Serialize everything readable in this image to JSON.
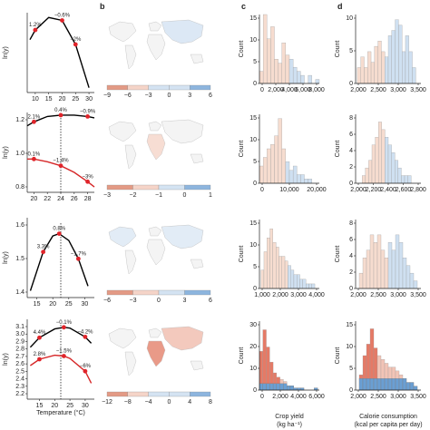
{
  "panel_labels": [
    "b",
    "c",
    "d"
  ],
  "col_a": {
    "xlabel": "Temperature (°C)",
    "rows": [
      {
        "ylabel": "ln(y)",
        "xticks": [
          10,
          15,
          20,
          25,
          30
        ],
        "yticks": [],
        "annotations": [
          "1.2%",
          "−0.6%",
          "−2%"
        ]
      },
      {
        "ylabel": "ln(y)",
        "xticks": [
          20,
          22,
          24,
          26,
          28
        ],
        "yticks": [
          "1.2",
          "1.0",
          "0.8"
        ],
        "annotations": [
          "2.1%",
          "0.4%",
          "−0.9%",
          "0.1%",
          "−1.4%",
          "−3%"
        ]
      },
      {
        "ylabel": "ln(y)",
        "xticks": [
          15,
          20,
          25,
          30
        ],
        "yticks": [
          "1.6",
          "1.5",
          "1.4"
        ],
        "annotations": [
          "3.3%",
          "0.8%",
          "−1.7%"
        ]
      },
      {
        "ylabel": "ln(y)",
        "xticks": [
          15,
          20,
          25,
          30
        ],
        "yticks": [
          "3.1",
          "3.0",
          "2.9",
          "2.8",
          "2.7",
          "2.6",
          "2.5",
          "2.4",
          "2.3",
          "2.2"
        ],
        "annotations": [
          "4.4%",
          "−0.1%",
          "−4.2%",
          "2.8%",
          "−1.5%",
          "−6%"
        ]
      }
    ]
  },
  "col_b": {
    "colorbars": [
      [
        "−9",
        "−6",
        "−3",
        "0",
        "3",
        "6"
      ],
      [
        "−3",
        "−2",
        "−1",
        "0",
        "1"
      ],
      [
        "−6",
        "−3",
        "0",
        "3",
        "6"
      ],
      [
        "−12",
        "−8",
        "−4",
        "0",
        "4",
        "8"
      ]
    ]
  },
  "col_c": {
    "ylabel": "Count",
    "xlabel_line1": "Crop yield",
    "xlabel_line2": "(kg ha⁻¹)",
    "rows": [
      {
        "xticks": [
          "0",
          "2,000",
          "4,000",
          "6,000",
          "8,000"
        ],
        "yticks": [
          "15",
          "10",
          "5",
          "0"
        ]
      },
      {
        "xticks": [
          "0",
          "10,000",
          "20,000"
        ],
        "yticks": [
          "15",
          "10",
          "5",
          "0"
        ]
      },
      {
        "xticks": [
          "1,000",
          "2,000",
          "3,000",
          "4,000"
        ],
        "yticks": [
          "15",
          "10",
          "5",
          "0"
        ]
      },
      {
        "xticks": [
          "0",
          "2,000",
          "4,000",
          "6,000"
        ],
        "yticks": [
          "30",
          "20",
          "10",
          "0"
        ]
      }
    ]
  },
  "col_d": {
    "ylabel": "Count",
    "xlabel_line1": "Calorie consumption",
    "xlabel_line2": "(kcal per capita per day)",
    "rows": [
      {
        "xticks": [
          "2,000",
          "2,500",
          "3,000",
          "3,500"
        ],
        "yticks": [
          "10",
          "5",
          "0"
        ]
      },
      {
        "xticks": [
          "2,000",
          "2,200",
          "2,400",
          "2,600",
          "2,800"
        ],
        "yticks": [
          "8",
          "6",
          "4",
          "2",
          "0"
        ]
      },
      {
        "xticks": [
          "2,000",
          "2,500",
          "3,000",
          "3,500"
        ],
        "yticks": [
          "8",
          "6",
          "4",
          "2",
          "0"
        ]
      },
      {
        "xticks": [
          "2,000",
          "2,500",
          "3,000",
          "3,500"
        ],
        "yticks": [
          "15",
          "10",
          "5",
          "0"
        ]
      }
    ]
  },
  "colors": {
    "curve": "#000000",
    "curve_red": "#d62728",
    "point": "#e0242a",
    "neg": "#d6604d",
    "pos": "#6a9fd3",
    "neutral": "#f7f7f7"
  },
  "chart_data": [
    {
      "type": "line",
      "panel": "a1",
      "x": [
        8,
        10,
        15,
        20,
        25,
        30
      ],
      "series": [
        {
          "values": [
            0.35,
            0.45,
            0.58,
            0.55,
            0.3,
            -0.15
          ]
        }
      ],
      "points": [
        [
          15,
          0.56
        ],
        [
          18,
          0.58
        ],
        [
          21,
          0.53
        ]
      ],
      "xlim": [
        7,
        32
      ]
    },
    {
      "type": "line",
      "panel": "a2",
      "x": [
        19,
        20,
        22,
        24,
        26,
        28,
        29
      ],
      "series": [
        {
          "values": [
            1.2,
            1.23,
            1.27,
            1.28,
            1.28,
            1.27,
            1.26
          ]
        },
        {
          "values": [
            0.95,
            0.95,
            0.93,
            0.9,
            0.85,
            0.78,
            0.74
          ]
        }
      ],
      "xlim": [
        19,
        29
      ],
      "ylim": [
        0.7,
        1.3
      ]
    },
    {
      "type": "line",
      "panel": "a3",
      "x": [
        13,
        17,
        20,
        22,
        25,
        28,
        31
      ],
      "series": [
        {
          "values": [
            1.38,
            1.55,
            1.62,
            1.63,
            1.6,
            1.52,
            1.4
          ]
        }
      ],
      "xlim": [
        12,
        33
      ],
      "ylim": [
        1.35,
        1.7
      ]
    },
    {
      "type": "line",
      "panel": "a4",
      "x": [
        12,
        15,
        20,
        23,
        25,
        30,
        32
      ],
      "series": [
        {
          "values": [
            2.85,
            2.97,
            3.08,
            3.1,
            3.09,
            2.98,
            2.9
          ]
        },
        {
          "values": [
            2.62,
            2.7,
            2.75,
            2.74,
            2.71,
            2.55,
            2.4
          ]
        }
      ],
      "xlim": [
        11,
        33
      ],
      "ylim": [
        2.2,
        3.2
      ]
    },
    {
      "type": "histogram",
      "panel": "c1",
      "xlim": [
        0,
        8000
      ],
      "ylim": [
        0,
        17
      ],
      "bins": [
        0,
        500,
        1000,
        1500,
        2000,
        2500,
        3000,
        3500,
        4000,
        4500,
        5000,
        5500,
        6000,
        6500,
        7000,
        7500
      ],
      "counts": [
        3,
        17,
        11,
        14,
        6,
        5,
        10,
        7,
        6,
        4,
        3,
        2,
        0,
        2,
        0,
        1
      ]
    },
    {
      "type": "histogram",
      "panel": "c2",
      "xlim": [
        0,
        24000
      ],
      "ylim": [
        0,
        16
      ],
      "bins": [
        0,
        1500,
        3000,
        4500,
        6000,
        7500,
        9000,
        10500,
        12000,
        13500,
        15000,
        16500,
        18000,
        19500
      ],
      "counts": [
        4,
        6,
        8,
        9,
        11,
        15,
        8,
        5,
        3,
        4,
        2,
        2,
        1,
        1
      ]
    },
    {
      "type": "histogram",
      "panel": "c3",
      "xlim": [
        500,
        4500
      ],
      "ylim": [
        0,
        15
      ],
      "bins": [
        600,
        800,
        1000,
        1200,
        1400,
        1600,
        1800,
        2000,
        2200,
        2400,
        2600,
        2800,
        3000,
        3200,
        3400,
        3600,
        3800,
        4000
      ],
      "counts": [
        4,
        8,
        11,
        13,
        10,
        9,
        7,
        7,
        6,
        5,
        4,
        3,
        3,
        2,
        2,
        1,
        1,
        1
      ]
    },
    {
      "type": "histogram",
      "panel": "c4",
      "xlim": [
        0,
        7000
      ],
      "ylim": [
        0,
        32
      ],
      "bins": [
        0,
        400,
        800,
        1200,
        1600,
        2000,
        2400,
        2800,
        3200,
        3600,
        4000,
        4400,
        4800,
        5200,
        5600,
        6000,
        6400
      ],
      "counts": [
        18,
        28,
        20,
        13,
        8,
        6,
        5,
        4,
        2,
        2,
        1,
        1,
        1,
        0,
        0,
        0,
        1
      ]
    },
    {
      "type": "histogram",
      "panel": "d1",
      "xlim": [
        1800,
        3700
      ],
      "ylim": [
        0,
        13
      ],
      "bins": [
        1850,
        1950,
        2050,
        2150,
        2250,
        2350,
        2450,
        2550,
        2650,
        2750,
        2850,
        2950,
        3050,
        3150,
        3250,
        3350,
        3450
      ],
      "counts": [
        3,
        5,
        3,
        6,
        4,
        7,
        8,
        6,
        5,
        9,
        10,
        12,
        11,
        6,
        9,
        6,
        3
      ]
    },
    {
      "type": "histogram",
      "panel": "d2",
      "xlim": [
        1900,
        2900
      ],
      "ylim": [
        0,
        9
      ],
      "bins": [
        2000,
        2050,
        2100,
        2150,
        2200,
        2250,
        2300,
        2350,
        2400,
        2450,
        2500,
        2550,
        2600,
        2650,
        2700
      ],
      "counts": [
        1,
        2,
        3,
        5,
        6,
        8,
        7,
        6,
        5,
        4,
        3,
        2,
        1,
        1,
        1
      ]
    },
    {
      "type": "histogram",
      "panel": "d3",
      "xlim": [
        1800,
        3600
      ],
      "ylim": [
        0,
        9
      ],
      "bins": [
        1900,
        2000,
        2100,
        2200,
        2300,
        2400,
        2500,
        2600,
        2700,
        2800,
        2900,
        3000,
        3100,
        3200,
        3300,
        3400
      ],
      "counts": [
        2,
        4,
        5,
        7,
        6,
        7,
        5,
        4,
        6,
        5,
        7,
        6,
        4,
        3,
        2,
        1
      ]
    },
    {
      "type": "histogram",
      "panel": "d4",
      "xlim": [
        1800,
        3600
      ],
      "ylim": [
        0,
        18
      ],
      "bins": [
        1900,
        2000,
        2100,
        2200,
        2300,
        2400,
        2500,
        2600,
        2700,
        2800,
        2900,
        3000,
        3100,
        3200,
        3300,
        3400
      ],
      "counts": [
        4,
        9,
        12,
        16,
        11,
        9,
        8,
        7,
        6,
        6,
        5,
        4,
        3,
        2,
        2,
        1
      ]
    }
  ]
}
